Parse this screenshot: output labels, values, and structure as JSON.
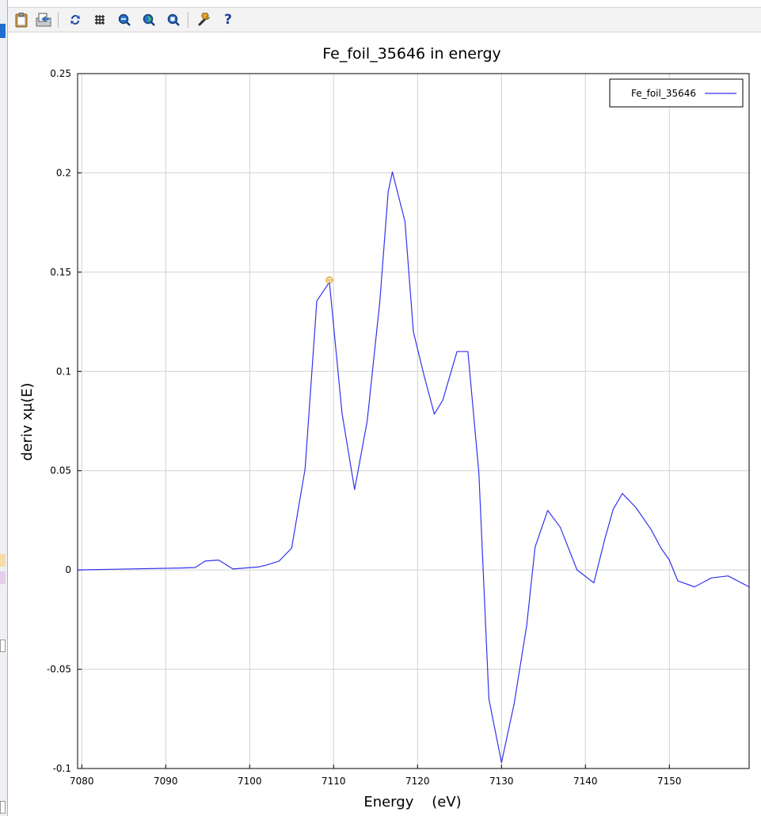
{
  "toolbar": {
    "buttons": [
      {
        "name": "clipboard-icon",
        "label": ""
      },
      {
        "name": "export-icon",
        "label": ""
      },
      {
        "name": "refresh-icon",
        "label": ""
      },
      {
        "name": "grid-icon",
        "label": ""
      },
      {
        "name": "zoom-in-icon",
        "label": ""
      },
      {
        "name": "zoom-out-icon",
        "label": ""
      },
      {
        "name": "zoom-reset-icon",
        "label": ""
      },
      {
        "name": "wrench-icon",
        "label": ""
      },
      {
        "name": "help-icon",
        "label": "?"
      }
    ]
  },
  "colors": {
    "series": "#3333ee",
    "marker": "#e0a020",
    "grid": "#d0d0d0",
    "axis": "#000000"
  },
  "chart_data": {
    "type": "line",
    "title": "Fe_foil_35646 in energy",
    "xlabel": "Energy    (eV)",
    "ylabel": "deriv xμ(E)",
    "xlim": [
      7079.5,
      7159.5
    ],
    "ylim": [
      -0.1,
      0.25
    ],
    "xticks": [
      7080,
      7090,
      7100,
      7110,
      7120,
      7130,
      7140,
      7150
    ],
    "xtick_labels": [
      "7080",
      "7090",
      "7100",
      "7110",
      "7120",
      "7130",
      "7140",
      "7150"
    ],
    "yticks": [
      -0.1,
      -0.05,
      0,
      0.05,
      0.1,
      0.15,
      0.2,
      0.25
    ],
    "ytick_labels": [
      "-0.1",
      "-0.05",
      "0",
      "0.05",
      "0.1",
      "0.15",
      "0.2",
      "0.25"
    ],
    "grid": true,
    "legend": {
      "position": "top-right",
      "entries": [
        "Fe_foil_35646"
      ]
    },
    "series": [
      {
        "name": "Fe_foil_35646",
        "x": [
          7079.5,
          7092.0,
          7093.5,
          7094.7,
          7096.3,
          7098.0,
          7099.5,
          7101.0,
          7102.0,
          7103.5,
          7105.0,
          7106.6,
          7108.0,
          7109.5,
          7111.0,
          7112.5,
          7114.0,
          7115.5,
          7116.5,
          7117.0,
          7118.5,
          7119.5,
          7120.8,
          7122.0,
          7123.0,
          7124.7,
          7126.0,
          7127.3,
          7128.5,
          7130.0,
          7131.5,
          7133.0,
          7134.0,
          7135.5,
          7137.0,
          7139.0,
          7141.0,
          7142.3,
          7143.3,
          7144.4,
          7146.0,
          7147.8,
          7149.0,
          7150.0,
          7151.0,
          7153.0,
          7155.0,
          7157.0,
          7159.5
        ],
        "y": [
          0.0,
          0.001,
          0.0012,
          0.0045,
          0.005,
          0.0005,
          0.001,
          0.0015,
          0.0025,
          0.0045,
          0.011,
          0.051,
          0.1355,
          0.145,
          0.079,
          0.0405,
          0.075,
          0.135,
          0.1905,
          0.2005,
          0.1755,
          0.12,
          0.0975,
          0.0785,
          0.0855,
          0.11,
          0.11,
          0.049,
          -0.065,
          -0.097,
          -0.0675,
          -0.028,
          0.0115,
          0.03,
          0.0215,
          0.0,
          -0.0065,
          0.0155,
          0.0305,
          0.0385,
          0.0315,
          0.0205,
          0.011,
          0.005,
          -0.0055,
          -0.0085,
          -0.004,
          -0.003,
          -0.0085
        ]
      }
    ],
    "marker_point": {
      "x": 7109.5,
      "y": 0.146
    }
  }
}
